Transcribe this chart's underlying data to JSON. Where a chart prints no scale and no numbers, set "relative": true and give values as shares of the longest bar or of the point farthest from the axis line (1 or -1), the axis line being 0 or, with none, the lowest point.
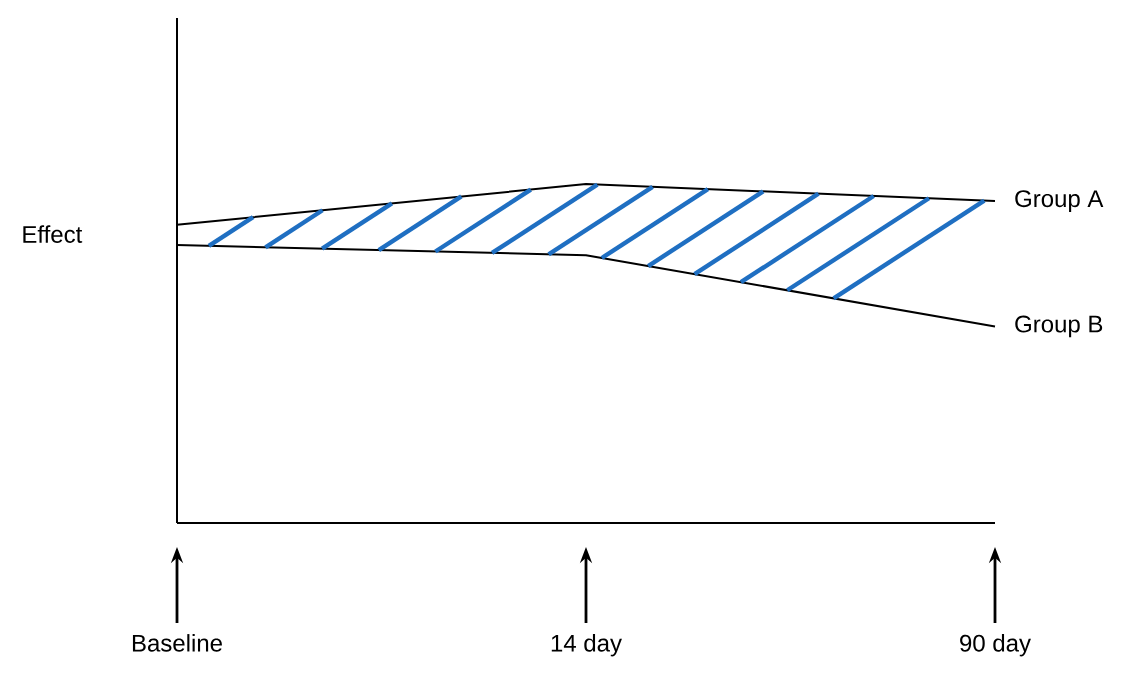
{
  "chart_data": {
    "type": "line",
    "relative": true,
    "ylabel": "Effect",
    "legend": "right",
    "categories": [
      "Baseline",
      "14 day",
      "90 day"
    ],
    "series": [
      {
        "name": "Group A",
        "color": "#000000",
        "values": [
          0.88,
          1,
          0.95
        ]
      },
      {
        "name": "Group B",
        "color": "#000000",
        "values": [
          0.82,
          0.79,
          0.58
        ]
      }
    ]
  }
}
